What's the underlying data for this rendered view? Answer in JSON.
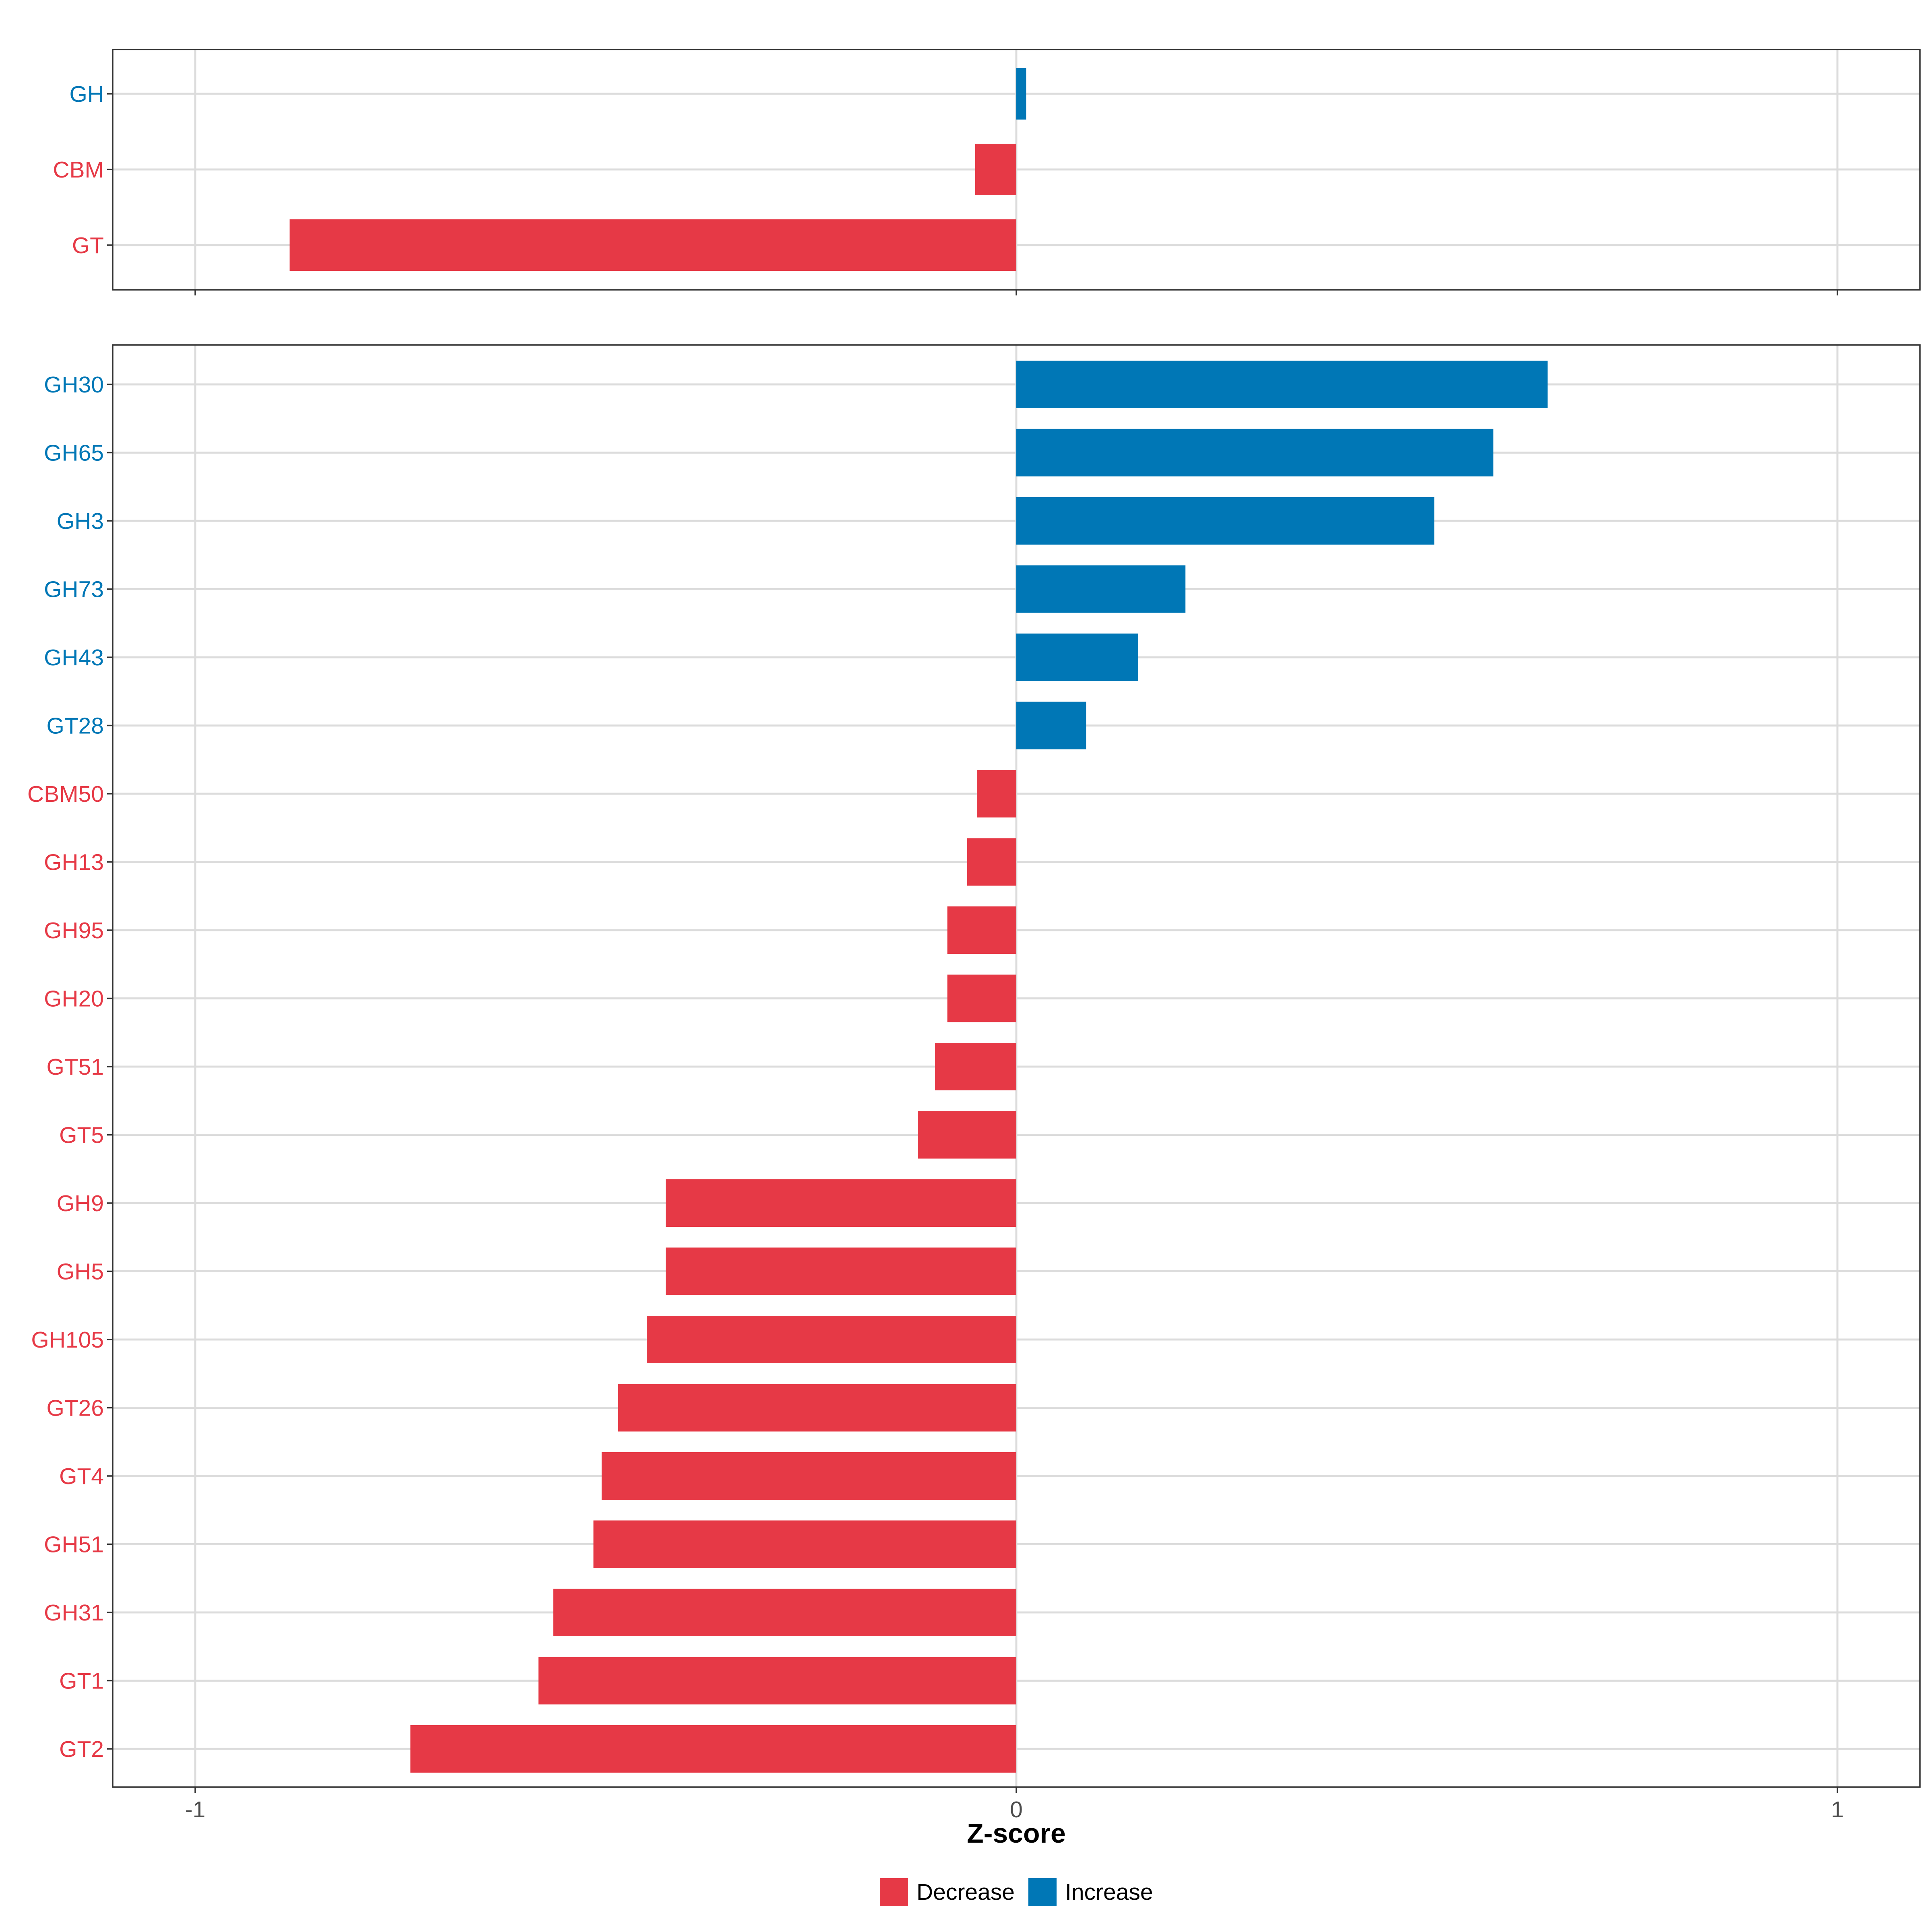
{
  "chart_data": {
    "type": "bar",
    "orientation": "horizontal",
    "xlabel": "Z-score",
    "xlim": [
      -1,
      1
    ],
    "x_ticks": [
      -1,
      0,
      1
    ],
    "x_tick_labels": [
      "-1",
      "0",
      "1"
    ],
    "legend": {
      "position": "bottom",
      "entries": [
        {
          "label": "Decrease",
          "color": "#E63946"
        },
        {
          "label": "Increase",
          "color": "#0077B6"
        }
      ]
    },
    "colors": {
      "Decrease": "#E63946",
      "Increase": "#0077B6"
    },
    "panels": [
      {
        "name": "top",
        "categories": [
          "GH",
          "CBM",
          "GT"
        ],
        "values": [
          0.012,
          -0.05,
          -0.885
        ]
      },
      {
        "name": "bottom",
        "categories": [
          "GH30",
          "GH65",
          "GH3",
          "GH73",
          "GH43",
          "GT28",
          "CBM50",
          "GH13",
          "GH95",
          "GH20",
          "GT51",
          "GT5",
          "GH9",
          "GH5",
          "GH105",
          "GT26",
          "GT4",
          "GH51",
          "GH31",
          "GT1",
          "GT2"
        ],
        "values": [
          0.647,
          0.581,
          0.509,
          0.206,
          0.148,
          0.085,
          -0.048,
          -0.06,
          -0.084,
          -0.084,
          -0.099,
          -0.12,
          -0.427,
          -0.427,
          -0.45,
          -0.485,
          -0.505,
          -0.515,
          -0.564,
          -0.582,
          -0.738
        ]
      }
    ]
  }
}
